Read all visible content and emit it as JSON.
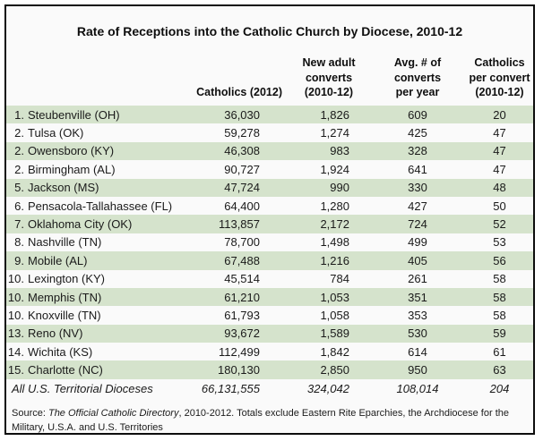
{
  "title": "Rate of Receptions into the Catholic Church by Diocese, 2010-12",
  "colors": {
    "row_green": "#d5e3cc",
    "frame_bg": "#fafafa",
    "border": "#0d0d0d",
    "text": "#1a1a1a"
  },
  "table": {
    "headers": {
      "diocese": "",
      "catholics": "Catholics (2012)",
      "converts": "New adult\nconverts\n(2010-12)",
      "avg_per_year": "Avg. # of\nconverts\nper year",
      "per_convert": "Catholics\nper convert\n(2010-12)"
    },
    "rows": [
      {
        "rank": "1.",
        "name": "Steubenville (OH)",
        "catholics": "36,030",
        "converts": "1,826",
        "avg_per_year": "609",
        "per_convert": "20"
      },
      {
        "rank": "2.",
        "name": "Tulsa (OK)",
        "catholics": "59,278",
        "converts": "1,274",
        "avg_per_year": "425",
        "per_convert": "47"
      },
      {
        "rank": "2.",
        "name": "Owensboro (KY)",
        "catholics": "46,308",
        "converts": "983",
        "avg_per_year": "328",
        "per_convert": "47"
      },
      {
        "rank": "2.",
        "name": "Birmingham (AL)",
        "catholics": "90,727",
        "converts": "1,924",
        "avg_per_year": "641",
        "per_convert": "47"
      },
      {
        "rank": "5.",
        "name": "Jackson (MS)",
        "catholics": "47,724",
        "converts": "990",
        "avg_per_year": "330",
        "per_convert": "48"
      },
      {
        "rank": "6.",
        "name": "Pensacola-Tallahassee (FL)",
        "catholics": "64,400",
        "converts": "1,280",
        "avg_per_year": "427",
        "per_convert": "50"
      },
      {
        "rank": "7.",
        "name": "Oklahoma City (OK)",
        "catholics": "113,857",
        "converts": "2,172",
        "avg_per_year": "724",
        "per_convert": "52"
      },
      {
        "rank": "8.",
        "name": "Nashville (TN)",
        "catholics": "78,700",
        "converts": "1,498",
        "avg_per_year": "499",
        "per_convert": "53"
      },
      {
        "rank": "9.",
        "name": "Mobile (AL)",
        "catholics": "67,488",
        "converts": "1,216",
        "avg_per_year": "405",
        "per_convert": "56"
      },
      {
        "rank": "10.",
        "name": "Lexington (KY)",
        "catholics": "45,514",
        "converts": "784",
        "avg_per_year": "261",
        "per_convert": "58"
      },
      {
        "rank": "10.",
        "name": "Memphis (TN)",
        "catholics": "61,210",
        "converts": "1,053",
        "avg_per_year": "351",
        "per_convert": "58"
      },
      {
        "rank": "10.",
        "name": "Knoxville (TN)",
        "catholics": "61,793",
        "converts": "1,058",
        "avg_per_year": "353",
        "per_convert": "58"
      },
      {
        "rank": "13.",
        "name": "Reno (NV)",
        "catholics": "93,672",
        "converts": "1,589",
        "avg_per_year": "530",
        "per_convert": "59"
      },
      {
        "rank": "14.",
        "name": "Wichita (KS)",
        "catholics": "112,499",
        "converts": "1,842",
        "avg_per_year": "614",
        "per_convert": "61"
      },
      {
        "rank": "15.",
        "name": "Charlotte (NC)",
        "catholics": "180,130",
        "converts": "2,850",
        "avg_per_year": "950",
        "per_convert": "63"
      }
    ],
    "totals": {
      "label": "All U.S. Territorial Dioceses",
      "catholics": "66,131,555",
      "converts": "324,042",
      "avg_per_year": "108,014",
      "per_convert": "204"
    }
  },
  "source": {
    "line1_prefix": "Source: ",
    "line1_italic": "The Official Catholic Directory",
    "line1_rest": ", 2010-2012. Totals exclude Eastern Rite Eparchies, the Archdiocese for the",
    "line2": "Military, U.S.A. and U.S. Territories"
  },
  "chart_data": {
    "type": "table",
    "title": "Rate of Receptions into the Catholic Church by Diocese, 2010-12",
    "columns": [
      "Diocese",
      "Catholics (2012)",
      "New adult converts (2010-12)",
      "Avg. # of converts per year",
      "Catholics per convert (2010-12)"
    ],
    "rows": [
      [
        "1. Steubenville (OH)",
        36030,
        1826,
        609,
        20
      ],
      [
        "2. Tulsa (OK)",
        59278,
        1274,
        425,
        47
      ],
      [
        "2. Owensboro (KY)",
        46308,
        983,
        328,
        47
      ],
      [
        "2. Birmingham (AL)",
        90727,
        1924,
        641,
        47
      ],
      [
        "5. Jackson (MS)",
        47724,
        990,
        330,
        48
      ],
      [
        "6. Pensacola-Tallahassee (FL)",
        64400,
        1280,
        427,
        50
      ],
      [
        "7. Oklahoma City (OK)",
        113857,
        2172,
        724,
        52
      ],
      [
        "8. Nashville (TN)",
        78700,
        1498,
        499,
        53
      ],
      [
        "9. Mobile (AL)",
        67488,
        1216,
        405,
        56
      ],
      [
        "10. Lexington (KY)",
        45514,
        784,
        261,
        58
      ],
      [
        "10. Memphis (TN)",
        61210,
        1053,
        351,
        58
      ],
      [
        "10. Knoxville (TN)",
        61793,
        1058,
        353,
        58
      ],
      [
        "13. Reno (NV)",
        93672,
        1589,
        530,
        59
      ],
      [
        "14. Wichita (KS)",
        112499,
        1842,
        614,
        61
      ],
      [
        "15. Charlotte (NC)",
        180130,
        2850,
        950,
        63
      ]
    ],
    "totals_row": [
      "All U.S. Territorial Dioceses",
      66131555,
      324042,
      108014,
      204
    ],
    "source_note": "Source: The Official Catholic Directory, 2010-2012. Totals exclude Eastern Rite Eparchies, the Archdiocese for the Military, U.S.A. and U.S. Territories"
  }
}
